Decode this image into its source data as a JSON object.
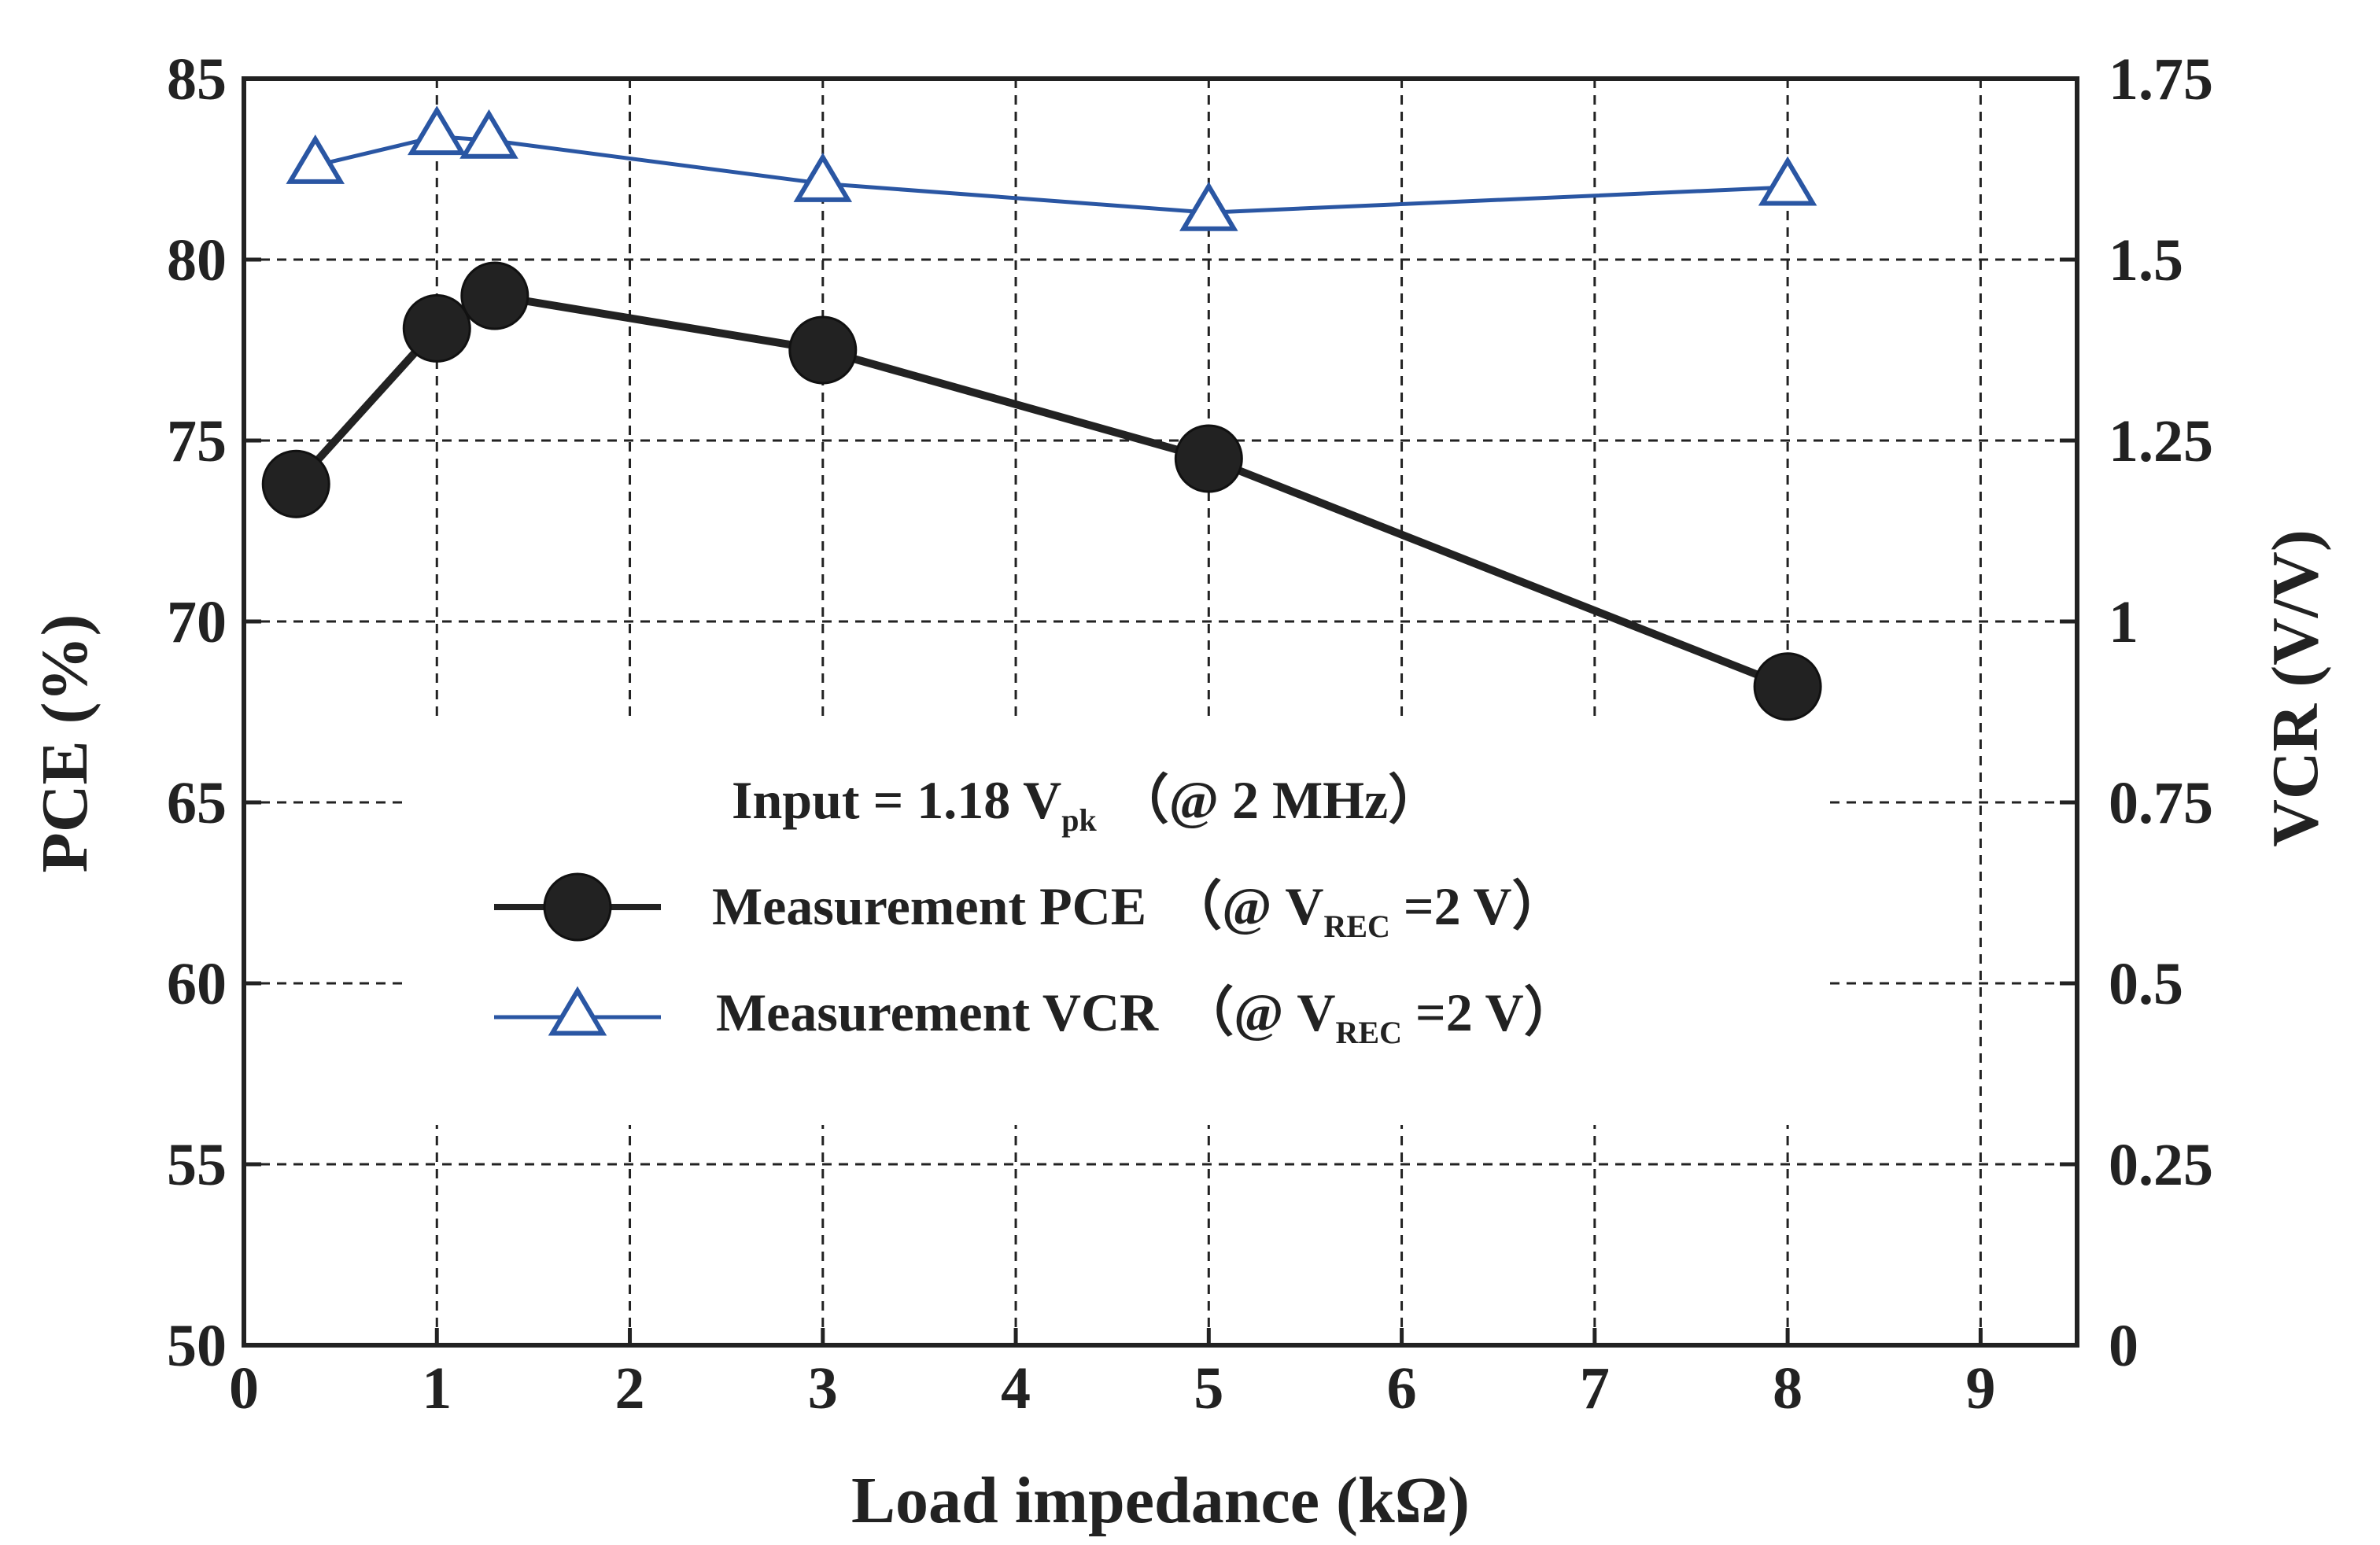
{
  "chart_data": {
    "type": "line",
    "title": "",
    "xlabel": "Load impedance (kΩ)",
    "ylabel_left": "PCE (%)",
    "ylabel_right": "VCR (V/V)",
    "xlim": [
      0,
      9.5
    ],
    "ylim_left": [
      50,
      85
    ],
    "ylim_right": [
      0,
      1.75
    ],
    "x_ticks": [
      "0",
      "1",
      "2",
      "3",
      "4",
      "5",
      "6",
      "7",
      "8",
      "9"
    ],
    "y_left_ticks": [
      "50",
      "55",
      "60",
      "65",
      "70",
      "75",
      "80",
      "85"
    ],
    "y_right_ticks": [
      "0",
      "0.25",
      "0.5",
      "0.75",
      "1",
      "1.25",
      "1.5",
      "1.75"
    ],
    "grid": true,
    "series": [
      {
        "name": "Measurement PCE",
        "axis": "left",
        "marker": "circle",
        "color": "#222222",
        "x": [
          0.27,
          1.0,
          1.3,
          3.0,
          5.0,
          8.0
        ],
        "values": [
          73.8,
          78.1,
          79.0,
          77.5,
          74.5,
          68.2
        ]
      },
      {
        "name": "Measurement VCR",
        "axis": "right",
        "marker": "triangle",
        "color": "#2a56a3",
        "x": [
          0.37,
          1.0,
          1.27,
          3.0,
          5.0,
          8.0
        ],
        "values": [
          1.63,
          1.67,
          1.665,
          1.605,
          1.565,
          1.6
        ]
      }
    ],
    "legend": {
      "placement": "center",
      "header": {
        "prefix": "Input = 1.18 V",
        "sub": "pk",
        "suffix": "（@ 2 MHz）"
      },
      "entries": [
        {
          "series": 0,
          "label": "Measurement PCE",
          "condition_prefix": "（@ V",
          "condition_sub": "REC",
          "condition_suffix": " =2 V）"
        },
        {
          "series": 1,
          "label": "Measurement VCR",
          "condition_prefix": "（@ V",
          "condition_sub": "REC",
          "condition_suffix": " =2 V）"
        }
      ]
    }
  }
}
